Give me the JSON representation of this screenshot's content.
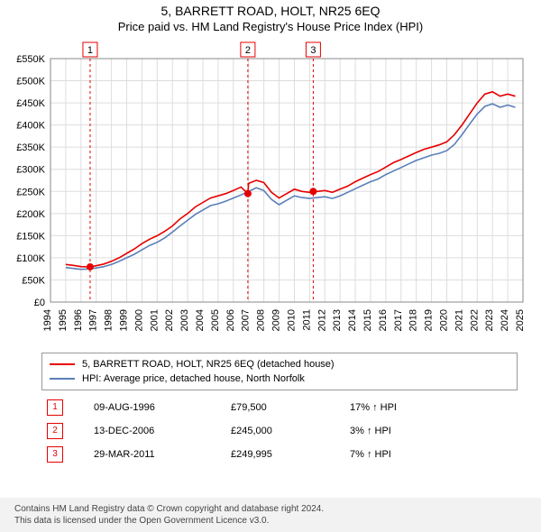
{
  "title_main": "5, BARRETT ROAD, HOLT, NR25 6EQ",
  "title_sub": "Price paid vs. HM Land Registry's House Price Index (HPI)",
  "chart": {
    "type": "line",
    "x_years": [
      1994,
      1995,
      1996,
      1997,
      1998,
      1999,
      2000,
      2001,
      2002,
      2003,
      2004,
      2005,
      2006,
      2007,
      2008,
      2009,
      2010,
      2011,
      2012,
      2013,
      2014,
      2015,
      2016,
      2017,
      2018,
      2019,
      2020,
      2021,
      2022,
      2023,
      2024,
      2025
    ],
    "ylim": [
      0,
      550000
    ],
    "ytick_step": 50000,
    "ytick_labels": [
      "£0",
      "£50K",
      "£100K",
      "£150K",
      "£200K",
      "£250K",
      "£300K",
      "£350K",
      "£400K",
      "£450K",
      "£500K",
      "£550K"
    ],
    "background_color": "#ffffff",
    "grid_color": "#dddddd",
    "line_width": 1.6,
    "font_size_axis": 11,
    "series": [
      {
        "name": "property",
        "label": "5, BARRETT ROAD, HOLT, NR25 6EQ (detached house)",
        "color": "#e60000",
        "points": [
          [
            1995.0,
            85000
          ],
          [
            1995.5,
            83000
          ],
          [
            1996.0,
            80000
          ],
          [
            1996.6,
            79500
          ],
          [
            1997.0,
            82000
          ],
          [
            1997.5,
            86000
          ],
          [
            1998.0,
            92000
          ],
          [
            1998.5,
            100000
          ],
          [
            1999.0,
            110000
          ],
          [
            1999.5,
            120000
          ],
          [
            2000.0,
            132000
          ],
          [
            2000.5,
            142000
          ],
          [
            2001.0,
            150000
          ],
          [
            2001.5,
            160000
          ],
          [
            2002.0,
            172000
          ],
          [
            2002.5,
            188000
          ],
          [
            2003.0,
            200000
          ],
          [
            2003.5,
            215000
          ],
          [
            2004.0,
            225000
          ],
          [
            2004.5,
            235000
          ],
          [
            2005.0,
            240000
          ],
          [
            2005.5,
            245000
          ],
          [
            2006.0,
            252000
          ],
          [
            2006.5,
            260000
          ],
          [
            2006.95,
            245000
          ],
          [
            2007.0,
            268000
          ],
          [
            2007.5,
            275000
          ],
          [
            2008.0,
            270000
          ],
          [
            2008.5,
            248000
          ],
          [
            2009.0,
            235000
          ],
          [
            2009.5,
            245000
          ],
          [
            2010.0,
            255000
          ],
          [
            2010.5,
            250000
          ],
          [
            2011.0,
            248000
          ],
          [
            2011.24,
            249995
          ],
          [
            2011.5,
            250000
          ],
          [
            2012.0,
            252000
          ],
          [
            2012.5,
            248000
          ],
          [
            2013.0,
            255000
          ],
          [
            2013.5,
            262000
          ],
          [
            2014.0,
            272000
          ],
          [
            2014.5,
            280000
          ],
          [
            2015.0,
            288000
          ],
          [
            2015.5,
            295000
          ],
          [
            2016.0,
            305000
          ],
          [
            2016.5,
            315000
          ],
          [
            2017.0,
            322000
          ],
          [
            2017.5,
            330000
          ],
          [
            2018.0,
            338000
          ],
          [
            2018.5,
            345000
          ],
          [
            2019.0,
            350000
          ],
          [
            2019.5,
            355000
          ],
          [
            2020.0,
            362000
          ],
          [
            2020.5,
            378000
          ],
          [
            2021.0,
            400000
          ],
          [
            2021.5,
            425000
          ],
          [
            2022.0,
            450000
          ],
          [
            2022.5,
            470000
          ],
          [
            2023.0,
            475000
          ],
          [
            2023.5,
            465000
          ],
          [
            2024.0,
            470000
          ],
          [
            2024.5,
            465000
          ]
        ]
      },
      {
        "name": "hpi",
        "label": "HPI: Average price, detached house, North Norfolk",
        "color": "#5b7fb8",
        "points": [
          [
            1995.0,
            78000
          ],
          [
            1995.5,
            76000
          ],
          [
            1996.0,
            74000
          ],
          [
            1996.6,
            75000
          ],
          [
            1997.0,
            77000
          ],
          [
            1997.5,
            80000
          ],
          [
            1998.0,
            85000
          ],
          [
            1998.5,
            92000
          ],
          [
            1999.0,
            100000
          ],
          [
            1999.5,
            108000
          ],
          [
            2000.0,
            118000
          ],
          [
            2000.5,
            128000
          ],
          [
            2001.0,
            135000
          ],
          [
            2001.5,
            145000
          ],
          [
            2002.0,
            158000
          ],
          [
            2002.5,
            172000
          ],
          [
            2003.0,
            185000
          ],
          [
            2003.5,
            198000
          ],
          [
            2004.0,
            208000
          ],
          [
            2004.5,
            218000
          ],
          [
            2005.0,
            222000
          ],
          [
            2005.5,
            228000
          ],
          [
            2006.0,
            235000
          ],
          [
            2006.5,
            242000
          ],
          [
            2007.0,
            250000
          ],
          [
            2007.5,
            258000
          ],
          [
            2008.0,
            252000
          ],
          [
            2008.5,
            232000
          ],
          [
            2009.0,
            220000
          ],
          [
            2009.5,
            230000
          ],
          [
            2010.0,
            240000
          ],
          [
            2010.5,
            236000
          ],
          [
            2011.0,
            234000
          ],
          [
            2011.5,
            236000
          ],
          [
            2012.0,
            238000
          ],
          [
            2012.5,
            234000
          ],
          [
            2013.0,
            240000
          ],
          [
            2013.5,
            248000
          ],
          [
            2014.0,
            256000
          ],
          [
            2014.5,
            264000
          ],
          [
            2015.0,
            272000
          ],
          [
            2015.5,
            278000
          ],
          [
            2016.0,
            288000
          ],
          [
            2016.5,
            296000
          ],
          [
            2017.0,
            304000
          ],
          [
            2017.5,
            312000
          ],
          [
            2018.0,
            320000
          ],
          [
            2018.5,
            326000
          ],
          [
            2019.0,
            332000
          ],
          [
            2019.5,
            336000
          ],
          [
            2020.0,
            342000
          ],
          [
            2020.5,
            356000
          ],
          [
            2021.0,
            378000
          ],
          [
            2021.5,
            402000
          ],
          [
            2022.0,
            425000
          ],
          [
            2022.5,
            442000
          ],
          [
            2023.0,
            448000
          ],
          [
            2023.5,
            440000
          ],
          [
            2024.0,
            445000
          ],
          [
            2024.5,
            440000
          ]
        ]
      }
    ],
    "markers": [
      {
        "num": "1",
        "x_year": 1996.6,
        "price": 79500,
        "color": "#e60000"
      },
      {
        "num": "2",
        "x_year": 2006.95,
        "price": 245000,
        "color": "#e60000"
      },
      {
        "num": "3",
        "x_year": 2011.24,
        "price": 249995,
        "color": "#e60000"
      }
    ],
    "marker_box_border": "#e60000",
    "marker_vline_color": "#e60000",
    "marker_point_radius": 4
  },
  "legend": {
    "rows": [
      {
        "color": "#e60000",
        "label": "5, BARRETT ROAD, HOLT, NR25 6EQ (detached house)"
      },
      {
        "color": "#5b7fb8",
        "label": "HPI: Average price, detached house, North Norfolk"
      }
    ]
  },
  "transactions": [
    {
      "num": "1",
      "date": "09-AUG-1996",
      "price": "£79,500",
      "delta": "17% ↑ HPI"
    },
    {
      "num": "2",
      "date": "13-DEC-2006",
      "price": "£245,000",
      "delta": "3% ↑ HPI"
    },
    {
      "num": "3",
      "date": "29-MAR-2011",
      "price": "£249,995",
      "delta": "7% ↑ HPI"
    }
  ],
  "tx_num_border": "#e60000",
  "footer_line1": "Contains HM Land Registry data © Crown copyright and database right 2024.",
  "footer_line2": "This data is licensed under the Open Government Licence v3.0."
}
